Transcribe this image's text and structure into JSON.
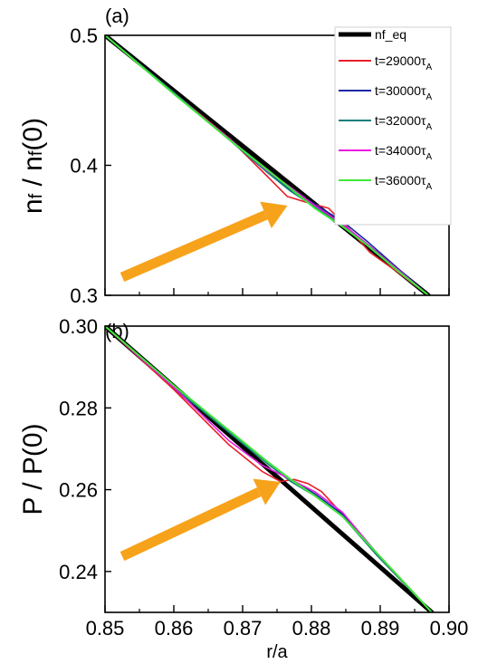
{
  "chart_data": [
    {
      "panel": "(a)",
      "type": "line",
      "ylabel": "nf / nf(0)",
      "ylabel_main": "n",
      "ylabel_sub": "f",
      "ylabel_sep": " / n",
      "ylabel_sub2": "f",
      "ylabel_tail": "(0)",
      "xlim": [
        0.85,
        0.9
      ],
      "ylim": [
        0.3,
        0.5
      ],
      "yticks": [
        0.3,
        0.4,
        0.5
      ],
      "ytick_labels": [
        "0.3",
        "0.4",
        "0.5"
      ],
      "legend": "top-right",
      "series": [
        {
          "name": "nf_eq",
          "color": "#000000",
          "width": 5,
          "x": [
            0.85,
            0.897
          ],
          "y": [
            0.5,
            0.3
          ]
        },
        {
          "name": "t=29000τA",
          "label_main": "t=29000τ",
          "label_sub": "A",
          "color": "#e8202a",
          "width": 1.6,
          "x": [
            0.85,
            0.86,
            0.868,
            0.8735,
            0.8765,
            0.879,
            0.8825,
            0.8855,
            0.8885,
            0.8925,
            0.897
          ],
          "y": [
            0.5,
            0.456,
            0.421,
            0.392,
            0.376,
            0.372,
            0.367,
            0.351,
            0.333,
            0.318,
            0.3
          ]
        },
        {
          "name": "t=30000τA",
          "label_main": "t=30000τ",
          "label_sub": "A",
          "color": "#1a28a6",
          "width": 1.6,
          "x": [
            0.85,
            0.86,
            0.868,
            0.8735,
            0.877,
            0.8805,
            0.8845,
            0.888,
            0.8925,
            0.897
          ],
          "y": [
            0.5,
            0.456,
            0.42,
            0.395,
            0.381,
            0.37,
            0.357,
            0.342,
            0.321,
            0.3
          ]
        },
        {
          "name": "t=32000τA",
          "label_main": "t=32000τ",
          "label_sub": "A",
          "color": "#127f7a",
          "width": 1.6,
          "x": [
            0.85,
            0.86,
            0.868,
            0.8735,
            0.877,
            0.8805,
            0.8845,
            0.888,
            0.8925,
            0.897
          ],
          "y": [
            0.5,
            0.456,
            0.42,
            0.395,
            0.38,
            0.368,
            0.354,
            0.34,
            0.32,
            0.3
          ]
        },
        {
          "name": "t=34000τA",
          "label_main": "t=34000τ",
          "label_sub": "A",
          "color": "#e81ae0",
          "width": 1.6,
          "x": [
            0.85,
            0.86,
            0.868,
            0.8735,
            0.877,
            0.8805,
            0.8845,
            0.888,
            0.8925,
            0.897
          ],
          "y": [
            0.5,
            0.455,
            0.421,
            0.396,
            0.383,
            0.369,
            0.355,
            0.34,
            0.32,
            0.3
          ]
        },
        {
          "name": "t=36000τA",
          "label_main": "t=36000τ",
          "label_sub": "A",
          "color": "#3ee838",
          "width": 2,
          "x": [
            0.85,
            0.86,
            0.868,
            0.8735,
            0.877,
            0.8805,
            0.8845,
            0.888,
            0.8925,
            0.897
          ],
          "y": [
            0.5,
            0.455,
            0.42,
            0.397,
            0.382,
            0.367,
            0.353,
            0.339,
            0.319,
            0.3
          ]
        }
      ],
      "arrow": {
        "x": [
          0.8525,
          0.8765
        ],
        "y": [
          0.314,
          0.369
        ],
        "color": "#f7a21b"
      }
    },
    {
      "panel": "(b)",
      "type": "line",
      "ylabel": "P / P(0)",
      "xlabel": "r/a",
      "xlim": [
        0.85,
        0.9
      ],
      "ylim": [
        0.23,
        0.3
      ],
      "xticks": [
        0.85,
        0.86,
        0.87,
        0.88,
        0.89,
        0.9
      ],
      "xtick_labels": [
        "0.85",
        "0.86",
        "0.87",
        "0.88",
        "0.89",
        "0.90"
      ],
      "yticks": [
        0.24,
        0.26,
        0.28,
        0.3
      ],
      "ytick_labels": [
        "0.24",
        "0.26",
        "0.28",
        "0.30"
      ],
      "series": [
        {
          "name": "nf_eq",
          "color": "#000000",
          "width": 5,
          "x": [
            0.85,
            0.8975
          ],
          "y": [
            0.3,
            0.23
          ]
        },
        {
          "name": "t=29000τA",
          "color": "#e8202a",
          "width": 1.6,
          "x": [
            0.85,
            0.86,
            0.868,
            0.8728,
            0.8755,
            0.8775,
            0.8795,
            0.8815,
            0.8845,
            0.8895,
            0.8975
          ],
          "y": [
            0.3,
            0.2845,
            0.271,
            0.2645,
            0.262,
            0.2625,
            0.2615,
            0.2595,
            0.254,
            0.244,
            0.23
          ]
        },
        {
          "name": "t=30000τA",
          "color": "#1a28a6",
          "width": 1.6,
          "x": [
            0.85,
            0.86,
            0.8735,
            0.877,
            0.8805,
            0.8845,
            0.8895,
            0.8975
          ],
          "y": [
            0.3,
            0.285,
            0.267,
            0.2625,
            0.259,
            0.254,
            0.2445,
            0.23
          ]
        },
        {
          "name": "t=32000τA",
          "color": "#127f7a",
          "width": 1.6,
          "x": [
            0.85,
            0.86,
            0.8735,
            0.877,
            0.8805,
            0.8845,
            0.8895,
            0.8975
          ],
          "y": [
            0.3,
            0.285,
            0.2665,
            0.262,
            0.2585,
            0.2535,
            0.244,
            0.23
          ]
        },
        {
          "name": "t=34000τA",
          "color": "#e81ae0",
          "width": 1.6,
          "x": [
            0.85,
            0.86,
            0.868,
            0.8728,
            0.877,
            0.8805,
            0.8845,
            0.8895,
            0.8975
          ],
          "y": [
            0.3,
            0.285,
            0.272,
            0.266,
            0.2625,
            0.2595,
            0.2545,
            0.2445,
            0.23
          ]
        },
        {
          "name": "t=36000τA",
          "color": "#3ee838",
          "width": 2,
          "x": [
            0.85,
            0.86,
            0.8735,
            0.877,
            0.8805,
            0.8845,
            0.8895,
            0.8975
          ],
          "y": [
            0.3,
            0.2855,
            0.267,
            0.2625,
            0.2585,
            0.2535,
            0.2445,
            0.23
          ]
        }
      ],
      "arrow": {
        "x": [
          0.8525,
          0.8755
        ],
        "y": [
          0.2437,
          0.2619
        ],
        "color": "#f7a21b"
      }
    }
  ]
}
